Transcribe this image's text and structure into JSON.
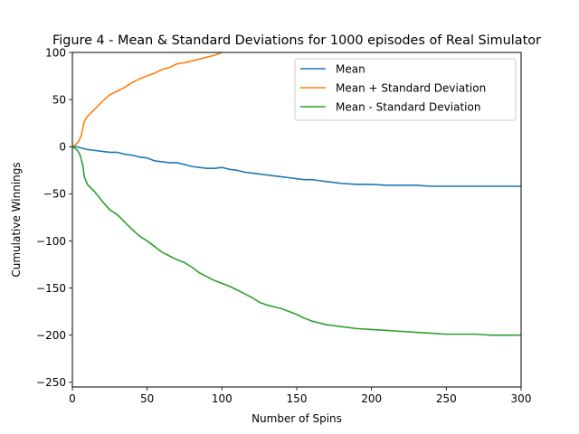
{
  "chart_data": {
    "type": "line",
    "title": "Figure 4 - Mean & Standard Deviations for 1000 episodes of Real Simulator",
    "xlabel": "Number of Spins",
    "ylabel": "Cumulative Winnings",
    "xlim": [
      0,
      300
    ],
    "ylim": [
      -255,
      100
    ],
    "xticks": [
      0,
      50,
      100,
      150,
      200,
      250,
      300
    ],
    "yticks": [
      -250,
      -200,
      -150,
      -100,
      -50,
      0,
      50,
      100
    ],
    "grid": false,
    "legend_position": "top-right",
    "series": [
      {
        "name": "Mean",
        "color": "#1f77b4",
        "x": [
          0,
          3,
          5,
          10,
          15,
          20,
          25,
          30,
          35,
          40,
          45,
          50,
          55,
          60,
          65,
          70,
          75,
          80,
          85,
          90,
          95,
          100,
          105,
          110,
          115,
          120,
          125,
          130,
          135,
          140,
          145,
          150,
          155,
          160,
          165,
          170,
          175,
          180,
          190,
          200,
          210,
          220,
          230,
          240,
          250,
          260,
          270,
          280,
          290,
          300
        ],
        "y": [
          0,
          0,
          -1,
          -3,
          -4,
          -5,
          -6,
          -6,
          -8,
          -9,
          -11,
          -12,
          -15,
          -16,
          -17,
          -17,
          -19,
          -21,
          -22,
          -23,
          -23,
          -22,
          -24,
          -25,
          -27,
          -28,
          -29,
          -30,
          -31,
          -32,
          -33,
          -34,
          -35,
          -35,
          -36,
          -37,
          -38,
          -39,
          -40,
          -40,
          -41,
          -41,
          -41,
          -42,
          -42,
          -42,
          -42,
          -42,
          -42,
          -42
        ]
      },
      {
        "name": "Mean + Standard Deviation",
        "color": "#ff7f0e",
        "x": [
          0,
          2,
          4,
          6,
          8,
          10,
          15,
          20,
          25,
          30,
          35,
          40,
          45,
          50,
          55,
          60,
          65,
          70,
          75,
          80,
          85,
          90,
          95,
          100
        ],
        "y": [
          0,
          2,
          5,
          12,
          27,
          32,
          40,
          48,
          55,
          59,
          63,
          68,
          72,
          75,
          78,
          82,
          84,
          88,
          89,
          91,
          93,
          95,
          97,
          100
        ]
      },
      {
        "name": "Mean - Standard Deviation",
        "color": "#2ca02c",
        "x": [
          0,
          3,
          5,
          7,
          8,
          10,
          15,
          20,
          25,
          30,
          35,
          40,
          45,
          50,
          55,
          60,
          65,
          70,
          75,
          80,
          85,
          90,
          95,
          100,
          105,
          110,
          115,
          120,
          125,
          130,
          135,
          140,
          145,
          150,
          155,
          160,
          165,
          170,
          175,
          180,
          190,
          200,
          210,
          220,
          230,
          240,
          250,
          260,
          270,
          280,
          290,
          300
        ],
        "y": [
          0,
          -3,
          -8,
          -20,
          -32,
          -40,
          -48,
          -58,
          -67,
          -72,
          -80,
          -88,
          -95,
          -100,
          -106,
          -112,
          -116,
          -120,
          -123,
          -128,
          -134,
          -138,
          -142,
          -145,
          -148,
          -152,
          -156,
          -160,
          -165,
          -168,
          -170,
          -172,
          -175,
          -178,
          -182,
          -185,
          -187,
          -189,
          -190,
          -191,
          -193,
          -194,
          -195,
          -196,
          -197,
          -198,
          -199,
          -199,
          -199,
          -200,
          -200,
          -200
        ]
      }
    ]
  }
}
